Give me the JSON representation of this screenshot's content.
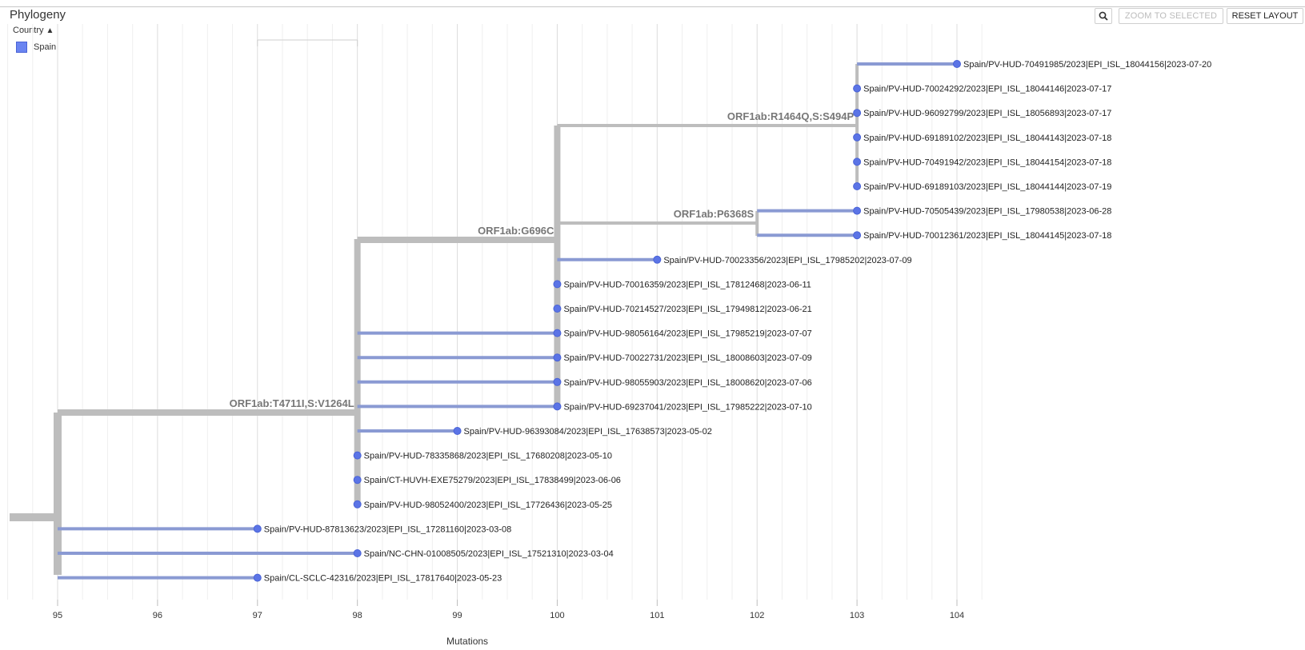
{
  "panel": {
    "title": "Phylogeny"
  },
  "legend": {
    "header": "Country",
    "items": [
      {
        "label": "Spain",
        "color": "#6a84f1"
      }
    ]
  },
  "toolbar": {
    "zoom_to_selected": "ZOOM TO SELECTED",
    "reset_layout": "RESET LAYOUT",
    "search_icon": "magnifier-icon"
  },
  "axis": {
    "title": "Mutations",
    "min": 94.5,
    "max": 104.5,
    "ticks": [
      95,
      96,
      97,
      98,
      99,
      100,
      101,
      102,
      103,
      104
    ]
  },
  "colors": {
    "internal_branch": "#bdbdbd",
    "tip_branch": "#8a9ad3",
    "tip_node": "#5b74e6"
  },
  "tree": {
    "nodes": [
      {
        "id": "n95",
        "div": 95,
        "parent": null
      },
      {
        "id": "n98",
        "div": 98,
        "parent": "n95",
        "label": "ORF1ab:T4711I,S:V1264L"
      },
      {
        "id": "n98b",
        "div": 98,
        "parent": "n98"
      },
      {
        "id": "n100",
        "div": 100,
        "parent": "n98",
        "label": "ORF1ab:G696C"
      },
      {
        "id": "n102",
        "div": 102,
        "parent": "n100",
        "label": "ORF1ab:P6368S"
      },
      {
        "id": "n103",
        "div": 103,
        "parent": "n100",
        "label": "ORF1ab:R1464Q,S:S494P"
      }
    ],
    "tips": [
      {
        "parent": "n103",
        "div": 104,
        "label": "Spain/PV-HUD-70491985/2023|EPI_ISL_18044156|2023-07-20"
      },
      {
        "parent": "n103",
        "div": 103,
        "label": "Spain/PV-HUD-70024292/2023|EPI_ISL_18044146|2023-07-17"
      },
      {
        "parent": "n103",
        "div": 103,
        "label": "Spain/PV-HUD-96092799/2023|EPI_ISL_18056893|2023-07-17"
      },
      {
        "parent": "n103",
        "div": 103,
        "label": "Spain/PV-HUD-69189102/2023|EPI_ISL_18044143|2023-07-18"
      },
      {
        "parent": "n103",
        "div": 103,
        "label": "Spain/PV-HUD-70491942/2023|EPI_ISL_18044154|2023-07-18"
      },
      {
        "parent": "n103",
        "div": 103,
        "label": "Spain/PV-HUD-69189103/2023|EPI_ISL_18044144|2023-07-19"
      },
      {
        "parent": "n102",
        "div": 103,
        "label": "Spain/PV-HUD-70505439/2023|EPI_ISL_17980538|2023-06-28"
      },
      {
        "parent": "n102",
        "div": 103,
        "label": "Spain/PV-HUD-70012361/2023|EPI_ISL_18044145|2023-07-18"
      },
      {
        "parent": "n100",
        "div": 101,
        "label": "Spain/PV-HUD-70023356/2023|EPI_ISL_17985202|2023-07-09"
      },
      {
        "parent": "n100",
        "div": 100,
        "label": "Spain/PV-HUD-70016359/2023|EPI_ISL_17812468|2023-06-11"
      },
      {
        "parent": "n100",
        "div": 100,
        "label": "Spain/PV-HUD-70214527/2023|EPI_ISL_17949812|2023-06-21"
      },
      {
        "parent": "n98b",
        "div": 100,
        "label": "Spain/PV-HUD-98056164/2023|EPI_ISL_17985219|2023-07-07"
      },
      {
        "parent": "n98b",
        "div": 100,
        "label": "Spain/PV-HUD-70022731/2023|EPI_ISL_18008603|2023-07-09"
      },
      {
        "parent": "n98b",
        "div": 100,
        "label": "Spain/PV-HUD-98055903/2023|EPI_ISL_18008620|2023-07-06"
      },
      {
        "parent": "n98b",
        "div": 100,
        "label": "Spain/PV-HUD-69237041/2023|EPI_ISL_17985222|2023-07-10"
      },
      {
        "parent": "n98",
        "div": 99,
        "label": "Spain/PV-HUD-96393084/2023|EPI_ISL_17638573|2023-05-02"
      },
      {
        "parent": "n98",
        "div": 98,
        "label": "Spain/PV-HUD-78335868/2023|EPI_ISL_17680208|2023-05-10"
      },
      {
        "parent": "n98",
        "div": 98,
        "label": "Spain/CT-HUVH-EXE75279/2023|EPI_ISL_17838499|2023-06-06"
      },
      {
        "parent": "n98",
        "div": 98,
        "label": "Spain/PV-HUD-98052400/2023|EPI_ISL_17726436|2023-05-25"
      },
      {
        "parent": "n95",
        "div": 97,
        "label": "Spain/PV-HUD-87813623/2023|EPI_ISL_17281160|2023-03-08"
      },
      {
        "parent": "n95",
        "div": 98,
        "label": "Spain/NC-CHN-01008505/2023|EPI_ISL_17521310|2023-03-04"
      },
      {
        "parent": "n95",
        "div": 97,
        "label": "Spain/CL-SCLC-42316/2023|EPI_ISL_17817640|2023-05-23"
      }
    ]
  }
}
